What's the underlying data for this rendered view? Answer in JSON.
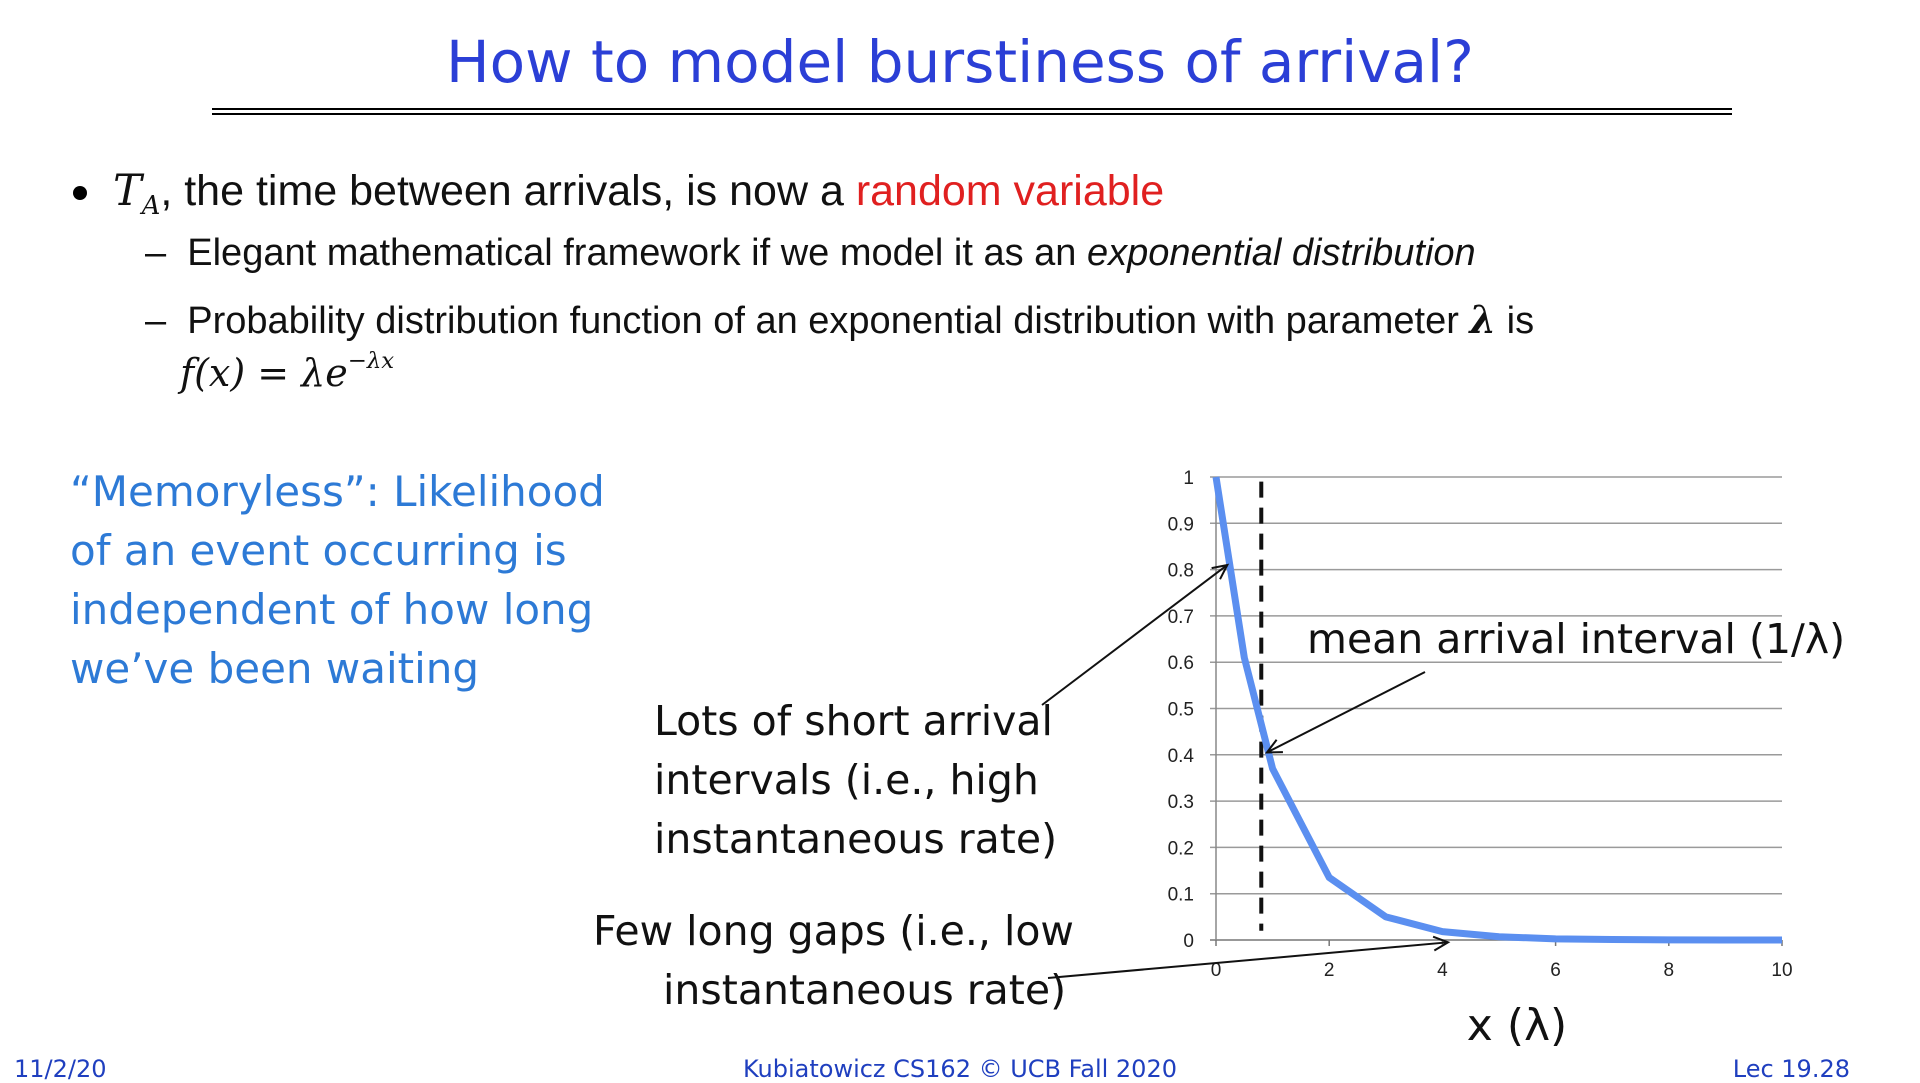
{
  "slide": {
    "title": "How to model burstiness of arrival?",
    "bullet": {
      "math_var": "T",
      "math_sub": "A",
      "text_before_red": ", the time between arrivals, is now a ",
      "text_red": "random variable"
    },
    "sub1": {
      "dash": "–",
      "text": "Elegant mathematical framework if we model it as an ",
      "text_italic": "exponential distribution"
    },
    "sub2": {
      "dash": "–",
      "text": "Probability distribution function of an exponential distribution with parameter ",
      "param": "λ",
      "text_after": " is",
      "formula_base": "f(x) = λe",
      "formula_exp": "−λx"
    },
    "side_note": "“Memoryless”: Likelihood of an event occurring is independent of how long we’ve been waiting",
    "callouts": {
      "mean": "mean arrival interval (1/λ)",
      "short": [
        "Lots of short arrival",
        "intervals (i.e., high",
        "instantaneous rate)"
      ],
      "long": [
        "Few long gaps (i.e., low",
        "instantaneous rate)"
      ]
    },
    "colors": {
      "title": "#2b3fd6",
      "highlight": "#e02020",
      "side_note": "#2d7ad6",
      "curve": "#5b8ff0",
      "footer": "#1f3fbf"
    }
  },
  "chart_data": {
    "type": "line",
    "title": "",
    "xlabel": "x (λ)",
    "ylabel": "",
    "x": [
      0,
      0.5,
      1,
      2,
      3,
      4,
      5,
      6,
      7,
      8,
      9,
      10
    ],
    "series": [
      {
        "values": [
          1.0,
          0.61,
          0.37,
          0.135,
          0.05,
          0.018,
          0.007,
          0.0025,
          0.001,
          0.0003,
          0.0001,
          5e-05
        ]
      }
    ],
    "xlim": [
      0,
      10
    ],
    "ylim": [
      0,
      1
    ],
    "x_ticks": [
      0,
      2,
      4,
      6,
      8,
      10
    ],
    "y_ticks": [
      0,
      0.1,
      0.2,
      0.3,
      0.4,
      0.5,
      0.6,
      0.7,
      0.8,
      0.9,
      1
    ],
    "mean_line_x": 0.8,
    "grid": "horizontal"
  },
  "footer": {
    "left": "11/2/20",
    "center": "Kubiatowicz CS162 © UCB Fall 2020",
    "right": "Lec 19.28"
  }
}
